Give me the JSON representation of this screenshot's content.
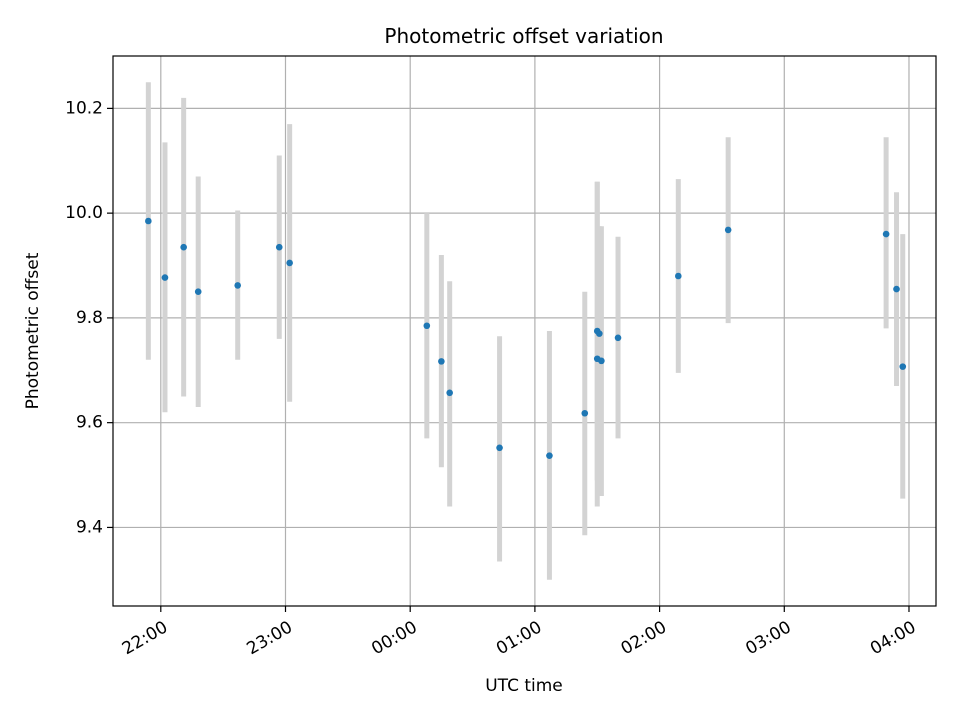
{
  "chart_data": {
    "type": "scatter",
    "title": "Photometric offset variation",
    "xlabel": "UTC time",
    "ylabel": "Photometric offset",
    "grid": true,
    "x_ticks": [
      {
        "minutes": -120,
        "label": "22:00"
      },
      {
        "minutes": -60,
        "label": "23:00"
      },
      {
        "minutes": 0,
        "label": "00:00"
      },
      {
        "minutes": 60,
        "label": "01:00"
      },
      {
        "minutes": 120,
        "label": "02:00"
      },
      {
        "minutes": 180,
        "label": "03:00"
      },
      {
        "minutes": 240,
        "label": "04:00"
      }
    ],
    "y_ticks": [
      9.4,
      9.6,
      9.8,
      10.0,
      10.2
    ],
    "xlim_minutes": [
      -143,
      253
    ],
    "ylim": [
      9.25,
      10.3
    ],
    "marker_color": "#1f77b4",
    "errorbar_color": "#d3d3d3",
    "points": [
      {
        "time": "21:54",
        "y": 9.985,
        "err_low": 9.72,
        "err_high": 10.25
      },
      {
        "time": "22:02",
        "y": 9.877,
        "err_low": 9.62,
        "err_high": 10.135
      },
      {
        "time": "22:11",
        "y": 9.935,
        "err_low": 9.65,
        "err_high": 10.22
      },
      {
        "time": "22:18",
        "y": 9.85,
        "err_low": 9.63,
        "err_high": 10.07
      },
      {
        "time": "22:37",
        "y": 9.862,
        "err_low": 9.72,
        "err_high": 10.005
      },
      {
        "time": "22:57",
        "y": 9.935,
        "err_low": 9.76,
        "err_high": 10.11
      },
      {
        "time": "23:02",
        "y": 9.905,
        "err_low": 9.64,
        "err_high": 10.17
      },
      {
        "time": "00:08",
        "y": 9.785,
        "err_low": 9.57,
        "err_high": 10.0
      },
      {
        "time": "00:15",
        "y": 9.717,
        "err_low": 9.515,
        "err_high": 9.92
      },
      {
        "time": "00:19",
        "y": 9.657,
        "err_low": 9.44,
        "err_high": 9.87
      },
      {
        "time": "00:43",
        "y": 9.552,
        "err_low": 9.335,
        "err_high": 9.765
      },
      {
        "time": "01:07",
        "y": 9.537,
        "err_low": 9.3,
        "err_high": 9.775
      },
      {
        "time": "01:24",
        "y": 9.618,
        "err_low": 9.385,
        "err_high": 9.85
      },
      {
        "time": "01:30",
        "y": 9.722,
        "err_low": 9.44,
        "err_high": 10.06
      },
      {
        "time": "01:30",
        "y": 9.775,
        "err_low": 9.49,
        "err_high": 10.06
      },
      {
        "time": "01:31",
        "y": 9.77,
        "err_low": 9.49,
        "err_high": 9.975
      },
      {
        "time": "01:32",
        "y": 9.718,
        "err_low": 9.46,
        "err_high": 9.975
      },
      {
        "time": "01:40",
        "y": 9.762,
        "err_low": 9.57,
        "err_high": 9.955
      },
      {
        "time": "02:09",
        "y": 9.88,
        "err_low": 9.695,
        "err_high": 10.065
      },
      {
        "time": "02:33",
        "y": 9.968,
        "err_low": 9.79,
        "err_high": 10.145
      },
      {
        "time": "03:49",
        "y": 9.96,
        "err_low": 9.78,
        "err_high": 10.145
      },
      {
        "time": "03:54",
        "y": 9.855,
        "err_low": 9.67,
        "err_high": 10.04
      },
      {
        "time": "03:57",
        "y": 9.707,
        "err_low": 9.455,
        "err_high": 9.96
      }
    ]
  }
}
